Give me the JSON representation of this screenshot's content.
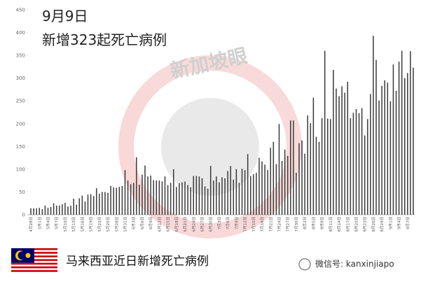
{
  "chart_data": {
    "type": "bar",
    "title": "9月9日",
    "subtitle": "新增323起死亡病例",
    "caption": "马来西亚近日新增死亡病例",
    "source": "微信号: kanxinjiapo",
    "watermark": "新加坡眼",
    "color": "#3a3a3a",
    "ylim": [
      0,
      450
    ],
    "yticks": [
      0,
      50,
      100,
      150,
      200,
      250,
      300,
      350,
      400,
      450
    ],
    "categories": [
      "4月28日",
      null,
      null,
      "5月1日",
      null,
      null,
      "5月4日",
      null,
      null,
      "5月7日",
      null,
      null,
      "5月10日",
      null,
      null,
      "5月13日",
      null,
      null,
      "5月16日",
      null,
      null,
      "5月19日",
      null,
      null,
      "5月22日",
      null,
      null,
      "5月25日",
      null,
      null,
      "5月28日",
      null,
      null,
      "5月31日",
      null,
      null,
      "6月3日",
      null,
      null,
      "6月6日",
      null,
      null,
      "6月9日",
      null,
      null,
      "6月12日",
      null,
      null,
      "6月15日",
      null,
      null,
      "6月18日",
      null,
      null,
      "6月21日",
      null,
      null,
      "6月24日",
      null,
      null,
      "6月27日",
      null,
      null,
      "6月30日",
      null,
      null,
      "7月3日",
      null,
      null,
      "7月6日",
      null,
      null,
      "7月9日",
      null,
      null,
      "7月12日",
      null,
      null,
      "7月15日",
      null,
      null,
      "7月18日",
      null,
      null,
      "7月21日",
      null,
      null,
      "7月24日",
      null,
      null,
      "7月27日",
      null,
      null,
      "7月30日",
      null,
      null,
      "8月2日",
      null,
      null,
      "8月5日",
      null,
      null,
      "8月8日",
      null,
      null,
      "8月11日",
      null,
      null,
      "8月14日",
      null,
      null,
      "8月17日",
      null,
      null,
      "8月20日",
      null,
      null,
      "8月23日",
      null,
      null,
      "8月26日",
      null,
      null,
      "8月29日",
      null,
      null,
      "9月1日",
      null,
      null,
      "9月4日",
      null,
      null,
      "9月7日",
      null,
      null
    ],
    "values": [
      14,
      14,
      14,
      15,
      12,
      20,
      15,
      17,
      25,
      20,
      20,
      23,
      26,
      18,
      20,
      35,
      22,
      36,
      42,
      29,
      44,
      45,
      41,
      58,
      46,
      50,
      50,
      48,
      63,
      60,
      59,
      61,
      63,
      98,
      75,
      67,
      70,
      126,
      66,
      88,
      108,
      84,
      86,
      76,
      75,
      75,
      73,
      84,
      65,
      70,
      100,
      61,
      69,
      71,
      73,
      65,
      60,
      85,
      85,
      84,
      80,
      62,
      57,
      107,
      75,
      84,
      71,
      82,
      80,
      96,
      107,
      77,
      100,
      70,
      101,
      98,
      133,
      85,
      89,
      92,
      125,
      117,
      110,
      98,
      147,
      160,
      111,
      199,
      118,
      143,
      129,
      207,
      207,
      92,
      157,
      163,
      134,
      218,
      201,
      257,
      171,
      160,
      212,
      360,
      211,
      210,
      318,
      277,
      260,
      282,
      268,
      292,
      212,
      224,
      232,
      223,
      234,
      174,
      210,
      265,
      393,
      340,
      251,
      283,
      295,
      290,
      249,
      330,
      272,
      336,
      360,
      300,
      311,
      359,
      323
    ]
  }
}
